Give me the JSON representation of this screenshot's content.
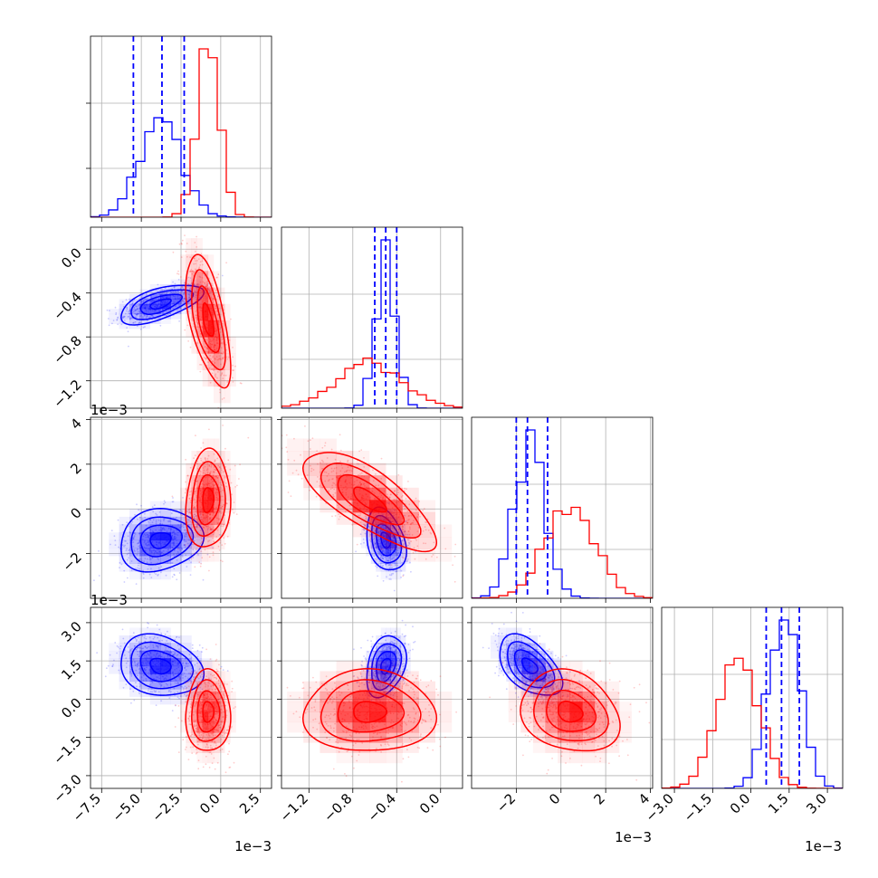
{
  "chart_data": {
    "type": "corner",
    "title": "",
    "grid": true,
    "parameters": [
      "",
      "",
      "",
      ""
    ],
    "offset_text": "1e−3",
    "ranges": [
      [
        -8.2,
        3.2
      ],
      [
        -1.45,
        0.2
      ],
      [
        -4.0,
        4.1
      ],
      [
        -3.5,
        3.6
      ]
    ],
    "ticks": [
      [
        "−7.5",
        "−5.0",
        "−2.5",
        "0.0",
        "2.5"
      ],
      [
        "−1.2",
        "−0.8",
        "−0.4",
        "0.0"
      ],
      [
        "−2",
        "0",
        "2",
        "4"
      ],
      [
        "−3.0",
        "−1.5",
        "0.0",
        "1.5",
        "3.0"
      ]
    ],
    "tick_values": [
      [
        -7.5,
        -5.0,
        -2.5,
        0.0,
        2.5
      ],
      [
        -1.2,
        -0.8,
        -0.4,
        0.0
      ],
      [
        -2,
        0,
        2,
        4
      ],
      [
        -3.0,
        -1.5,
        0.0,
        1.5,
        3.0
      ]
    ],
    "series": [
      {
        "name": "",
        "color": "#0000ff",
        "means": [
          -3.8,
          -0.5,
          -1.4,
          1.3
        ],
        "sds": [
          1.3,
          0.09,
          0.7,
          0.6
        ],
        "quantiles": [
          [
            -5.5,
            -3.7,
            -2.3
          ],
          [
            -0.6,
            -0.5,
            -0.4
          ],
          [
            -2.0,
            -1.5,
            -0.6
          ],
          [
            0.6,
            1.2,
            1.9
          ]
        ],
        "correlations": {
          "0-1": 0.6,
          "0-2": 0.15,
          "0-3": -0.2,
          "1-2": -0.3,
          "1-3": 0.3,
          "2-3": -0.5
        }
      },
      {
        "name": "",
        "color": "#ff0000",
        "means": [
          -0.8,
          -0.65,
          0.4,
          -0.5
        ],
        "sds": [
          0.7,
          0.3,
          1.1,
          0.8
        ],
        "quantiles": [],
        "correlations": {
          "0-1": -0.6,
          "0-2": 0.1,
          "0-3": 0.0,
          "1-2": -0.75,
          "1-3": 0.0,
          "2-3": -0.2
        }
      }
    ]
  }
}
